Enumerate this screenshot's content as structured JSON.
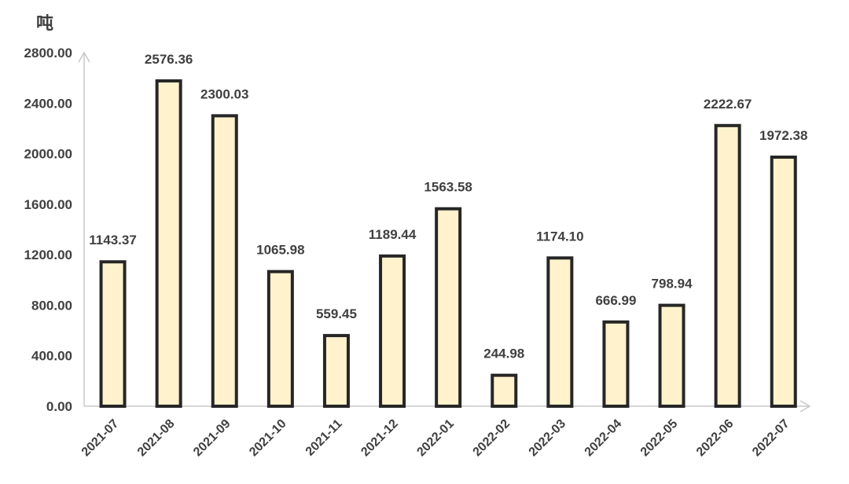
{
  "chart_data": {
    "type": "bar",
    "ylabel": "吨",
    "categories": [
      "2021-07",
      "2021-08",
      "2021-09",
      "2021-10",
      "2021-11",
      "2021-12",
      "2022-01",
      "2022-02",
      "2022-03",
      "2022-04",
      "2022-05",
      "2022-06",
      "2022-07"
    ],
    "values": [
      1143.37,
      2576.36,
      2300.03,
      1065.98,
      559.45,
      1189.44,
      1563.58,
      244.98,
      1174.1,
      666.99,
      798.94,
      2222.67,
      1972.38
    ],
    "value_labels": [
      "1143.37",
      "2576.36",
      "2300.03",
      "1065.98",
      "559.45",
      "1189.44",
      "1563.58",
      "244.98",
      "1174.10",
      "666.99",
      "798.94",
      "2222.67",
      "1972.38"
    ],
    "yticks": [
      "0.00",
      "400.00",
      "800.00",
      "1200.00",
      "1600.00",
      "2000.00",
      "2400.00",
      "2800.00"
    ],
    "ylim": [
      0,
      2800
    ],
    "grid": false,
    "legend": "none",
    "colors": {
      "bar_fill": "#fff2cc",
      "bar_edge": "#262626",
      "axis": "#c8c8c8",
      "text": "#404040"
    }
  }
}
